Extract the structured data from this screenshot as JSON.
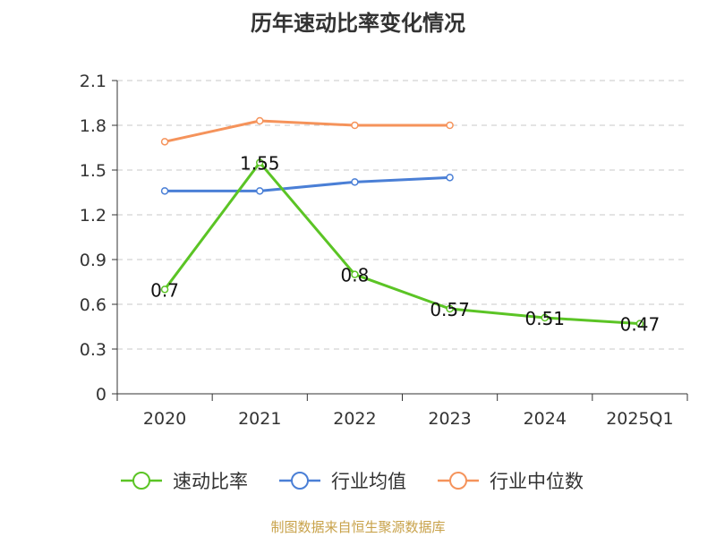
{
  "chart_data": {
    "type": "line",
    "title": "历年速动比率变化情况",
    "categories": [
      "2020",
      "2021",
      "2022",
      "2023",
      "2024",
      "2025Q1"
    ],
    "ylim": [
      0,
      2.1
    ],
    "yticks": [
      "0",
      "0.3",
      "0.6",
      "0.9",
      "1.2",
      "1.5",
      "1.8",
      "2.1"
    ],
    "ytick_values": [
      0,
      0.3,
      0.6,
      0.9,
      1.2,
      1.5,
      1.8,
      2.1
    ],
    "grid": true,
    "legend_position": "bottom",
    "series": [
      {
        "name": "速动比率",
        "color": "#5bc425",
        "values": [
          0.7,
          1.55,
          0.8,
          0.57,
          0.51,
          0.47
        ],
        "labels": [
          "0.7",
          "1.55",
          "0.8",
          "0.57",
          "0.51",
          "0.47"
        ]
      },
      {
        "name": "行业均值",
        "color": "#4a7fd6",
        "values": [
          1.36,
          1.36,
          1.42,
          1.45,
          null,
          null
        ]
      },
      {
        "name": "行业中位数",
        "color": "#f5935b",
        "values": [
          1.69,
          1.83,
          1.8,
          1.8,
          null,
          null
        ]
      }
    ]
  },
  "source_note": "制图数据来自恒生聚源数据库"
}
